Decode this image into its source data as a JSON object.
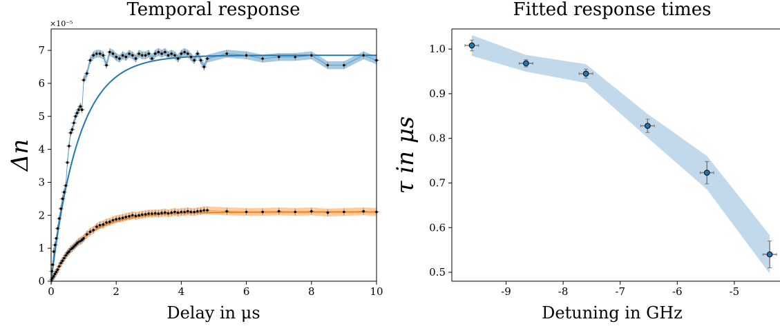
{
  "chart_data": [
    {
      "type": "scatter",
      "title": "Temporal response",
      "xlabel": "Delay in μs",
      "ylabel": "Δn",
      "y_offset_label": "×10⁻⁵",
      "xlim": [
        0,
        10
      ],
      "ylim": [
        0,
        7.65
      ],
      "xticks": [
        0,
        2,
        4,
        6,
        8,
        10
      ],
      "yticks": [
        0,
        1,
        2,
        3,
        4,
        5,
        6,
        7
      ],
      "series": [
        {
          "color": "#1f77b4",
          "fit_tau": 0.85,
          "fit_amplitude": 6.85,
          "x": [
            0.02,
            0.05,
            0.08,
            0.12,
            0.16,
            0.2,
            0.25,
            0.3,
            0.35,
            0.4,
            0.45,
            0.5,
            0.55,
            0.6,
            0.65,
            0.7,
            0.75,
            0.8,
            0.85,
            0.9,
            0.95,
            1.0,
            1.1,
            1.2,
            1.3,
            1.4,
            1.5,
            1.6,
            1.7,
            1.8,
            1.9,
            2.0,
            2.1,
            2.2,
            2.3,
            2.4,
            2.5,
            2.6,
            2.7,
            2.8,
            2.9,
            3.0,
            3.1,
            3.2,
            3.3,
            3.4,
            3.5,
            3.6,
            3.7,
            3.8,
            3.9,
            4.0,
            4.1,
            4.2,
            4.3,
            4.4,
            4.5,
            4.6,
            4.7,
            4.8,
            5.4,
            6.0,
            6.5,
            7.0,
            7.5,
            8.0,
            8.5,
            9.0,
            9.6,
            10.0
          ],
          "y": [
            0.3,
            0.5,
            0.9,
            1.1,
            1.3,
            1.6,
            1.9,
            2.2,
            2.5,
            2.7,
            2.9,
            3.6,
            4.1,
            4.5,
            4.6,
            4.8,
            5.0,
            5.1,
            5.2,
            5.3,
            5.2,
            6.1,
            6.3,
            6.7,
            6.85,
            6.9,
            6.9,
            6.85,
            6.55,
            6.95,
            6.9,
            6.8,
            6.75,
            6.85,
            6.8,
            6.9,
            6.85,
            6.75,
            6.9,
            6.85,
            6.85,
            6.9,
            6.75,
            6.9,
            6.95,
            6.9,
            6.95,
            6.85,
            6.9,
            6.85,
            6.75,
            6.9,
            6.95,
            6.9,
            6.8,
            6.7,
            6.9,
            6.7,
            6.5,
            6.75,
            6.9,
            6.85,
            6.75,
            6.8,
            6.8,
            6.85,
            6.55,
            6.55,
            6.85,
            6.7
          ]
        },
        {
          "color": "#ff7f0e",
          "fit_tau": 1.0,
          "fit_amplitude": 2.1,
          "x": [
            0.02,
            0.05,
            0.08,
            0.12,
            0.16,
            0.2,
            0.25,
            0.3,
            0.35,
            0.4,
            0.45,
            0.5,
            0.55,
            0.6,
            0.65,
            0.7,
            0.75,
            0.8,
            0.85,
            0.9,
            0.95,
            1.0,
            1.1,
            1.2,
            1.3,
            1.4,
            1.5,
            1.6,
            1.7,
            1.8,
            1.9,
            2.0,
            2.1,
            2.2,
            2.3,
            2.4,
            2.5,
            2.6,
            2.7,
            2.8,
            2.9,
            3.0,
            3.1,
            3.2,
            3.3,
            3.4,
            3.5,
            3.6,
            3.7,
            3.8,
            3.9,
            4.0,
            4.1,
            4.2,
            4.3,
            4.4,
            4.5,
            4.6,
            4.7,
            4.8,
            5.4,
            6.0,
            6.5,
            7.0,
            7.5,
            8.0,
            8.5,
            9.0,
            9.6,
            10.0
          ],
          "y": [
            0.05,
            0.1,
            0.15,
            0.22,
            0.28,
            0.35,
            0.45,
            0.55,
            0.62,
            0.7,
            0.78,
            0.85,
            0.9,
            0.97,
            1.0,
            1.05,
            1.1,
            1.15,
            1.2,
            1.22,
            1.25,
            1.3,
            1.42,
            1.5,
            1.55,
            1.65,
            1.7,
            1.72,
            1.78,
            1.8,
            1.85,
            1.88,
            1.9,
            1.92,
            1.95,
            1.97,
            2.0,
            1.98,
            2.0,
            2.02,
            2.03,
            2.05,
            2.05,
            2.06,
            2.05,
            2.07,
            2.08,
            2.06,
            2.08,
            2.1,
            2.08,
            2.1,
            2.1,
            2.12,
            2.1,
            2.1,
            2.12,
            2.13,
            2.15,
            2.15,
            2.12,
            2.1,
            2.1,
            2.12,
            2.1,
            2.12,
            2.08,
            2.1,
            2.12,
            2.1
          ]
        }
      ]
    },
    {
      "type": "scatter",
      "title": "Fitted response times",
      "xlabel": "Detuning in GHz",
      "ylabel": "τ in μs",
      "xlim": [
        -9.95,
        -4.2
      ],
      "ylim": [
        0.48,
        1.045
      ],
      "xticks": [
        -9,
        -8,
        -7,
        -6,
        -5
      ],
      "yticks": [
        0.5,
        0.6,
        0.7,
        0.8,
        0.9,
        1.0
      ],
      "color": "#1f77b4",
      "x": [
        -9.6,
        -8.65,
        -7.6,
        -6.52,
        -5.48,
        -4.38
      ],
      "y": [
        1.008,
        0.968,
        0.945,
        0.828,
        0.723,
        0.54
      ],
      "yerr": [
        0.012,
        0.008,
        0.01,
        0.015,
        0.025,
        0.03
      ],
      "xerr": [
        0.12,
        0.12,
        0.12,
        0.12,
        0.12,
        0.12
      ]
    }
  ]
}
